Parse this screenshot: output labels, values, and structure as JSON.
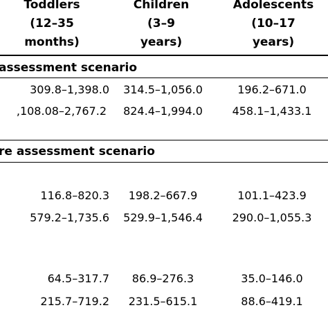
{
  "headers": {
    "toddlers": "Toddlers\n(12–35\nmonths)",
    "children": "Children\n(3–9\nyears)",
    "adolescents": "Adolescents\n(10–17\nyears)"
  },
  "sections": {
    "first_title": "assessment scenario",
    "second_title": "re assessment scenario"
  },
  "rows": {
    "r1": [
      "309.8–1,398.0",
      "314.5–1,056.0",
      "196.2–671.0"
    ],
    "r2": [
      ",108.08–2,767.2",
      "824.4–1,994.0",
      "458.1–1,433.1"
    ],
    "r3": [
      "116.8–820.3",
      "198.2–667.9",
      "101.1–423.9"
    ],
    "r4": [
      "579.2–1,735.6",
      "529.9–1,546.4",
      "290.0–1,055.3"
    ],
    "r5": [
      "64.5–317.7",
      "86.9–276.3",
      "35.0–146.0"
    ],
    "r6": [
      "215.7–719.2",
      "231.5–615.1",
      "88.6–419.1"
    ]
  }
}
